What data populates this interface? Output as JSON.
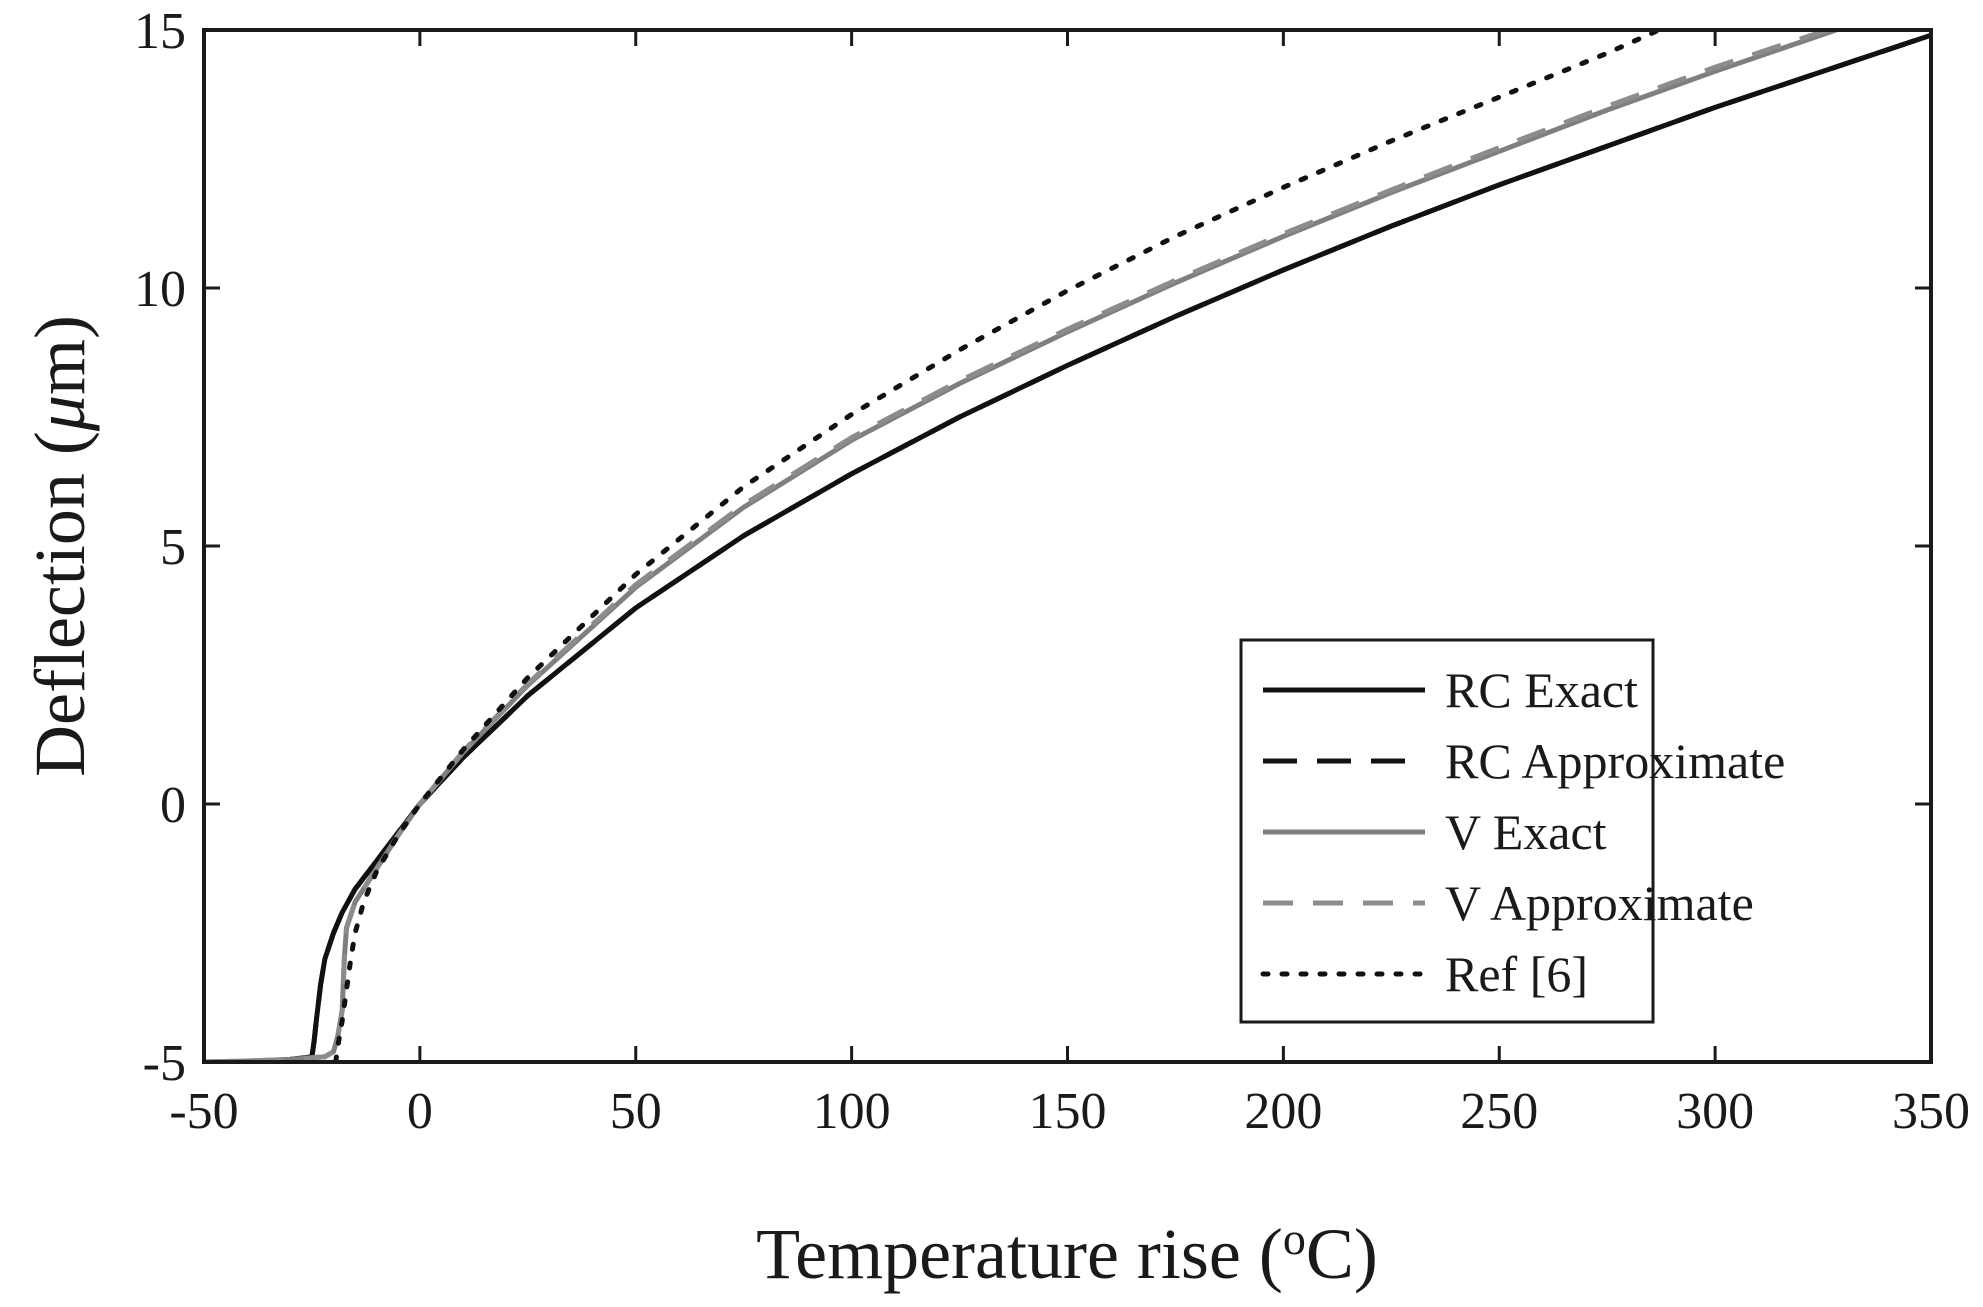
{
  "chart_data": {
    "type": "line",
    "title": "",
    "xlabel_main": "Temperature rise (",
    "xlabel_sup": "o",
    "xlabel_end": "C)",
    "ylabel_main": "Deflection (",
    "ylabel_mu": "μ",
    "ylabel_end": "m)",
    "xlim": [
      -50,
      350
    ],
    "ylim": [
      -5,
      15
    ],
    "xticks": [
      -50,
      0,
      50,
      100,
      150,
      200,
      250,
      300,
      350
    ],
    "yticks": [
      -5,
      0,
      5,
      10,
      15
    ],
    "xtick_labels": [
      "-50",
      "0",
      "50",
      "100",
      "150",
      "200",
      "250",
      "300",
      "350"
    ],
    "ytick_labels": [
      "-5",
      "0",
      "5",
      "10",
      "15"
    ],
    "legend_position": "bottom-right",
    "series": [
      {
        "name": "RC Exact",
        "color": "#111111",
        "dash": "solid",
        "x": [
          -50,
          -40,
          -30,
          -25,
          -24.5,
          -24,
          -23,
          -22,
          -20,
          -18,
          -15,
          -10,
          -5,
          0,
          10,
          25,
          50,
          75,
          100,
          125,
          150,
          175,
          200,
          225,
          250,
          275,
          300,
          325,
          350
        ],
        "y": [
          -5,
          -5,
          -4.95,
          -4.9,
          -4.6,
          -4.2,
          -3.5,
          -3.0,
          -2.5,
          -2.1,
          -1.65,
          -1.1,
          -0.55,
          0,
          0.9,
          2.1,
          3.8,
          5.2,
          6.4,
          7.5,
          8.5,
          9.45,
          10.35,
          11.2,
          12.0,
          12.75,
          13.5,
          14.2,
          14.9
        ]
      },
      {
        "name": "RC Approximate",
        "color": "#111111",
        "dash": "long-dash",
        "x": [
          -50,
          -40,
          -30,
          -25,
          -24.5,
          -24,
          -23,
          -22,
          -20,
          -18,
          -15,
          -10,
          -5,
          0,
          10,
          25,
          50,
          75,
          100,
          125,
          150,
          175,
          200,
          225,
          250,
          275,
          300,
          325,
          350
        ],
        "y": [
          -5,
          -5,
          -4.95,
          -4.9,
          -4.6,
          -4.2,
          -3.5,
          -3.0,
          -2.5,
          -2.1,
          -1.65,
          -1.1,
          -0.55,
          0,
          0.9,
          2.1,
          3.8,
          5.2,
          6.4,
          7.5,
          8.5,
          9.45,
          10.35,
          11.2,
          12.0,
          12.75,
          13.5,
          14.2,
          14.9
        ]
      },
      {
        "name": "V Exact",
        "color": "#7f7f7f",
        "dash": "solid",
        "x": [
          -50,
          -40,
          -30,
          -22,
          -20,
          -19,
          -18,
          -17.5,
          -17,
          -15,
          -10,
          -5,
          0,
          10,
          25,
          50,
          75,
          100,
          125,
          150,
          175,
          200,
          225,
          250,
          275,
          300,
          328
        ],
        "y": [
          -5,
          -4.98,
          -4.95,
          -4.9,
          -4.8,
          -4.5,
          -4.0,
          -3.0,
          -2.4,
          -1.9,
          -1.25,
          -0.6,
          0,
          1.0,
          2.3,
          4.2,
          5.75,
          7.05,
          8.15,
          9.15,
          10.1,
          11.0,
          11.85,
          12.65,
          13.45,
          14.2,
          15.0
        ]
      },
      {
        "name": "V Approximate",
        "color": "#8c8c8c",
        "dash": "dash",
        "x": [
          -50,
          -40,
          -30,
          -22,
          -20,
          -19,
          -18,
          -17.5,
          -17,
          -15,
          -10,
          -5,
          0,
          10,
          25,
          50,
          75,
          100,
          125,
          150,
          175,
          200,
          225,
          250,
          275,
          300,
          326
        ],
        "y": [
          -5,
          -4.98,
          -4.95,
          -4.9,
          -4.8,
          -4.5,
          -4.0,
          -3.0,
          -2.4,
          -1.9,
          -1.25,
          -0.6,
          0,
          1.02,
          2.33,
          4.25,
          5.8,
          7.1,
          8.2,
          9.2,
          10.15,
          11.05,
          11.9,
          12.72,
          13.52,
          14.28,
          15.0
        ]
      },
      {
        "name": "Ref [6]",
        "color": "#111111",
        "dash": "dot",
        "x": [
          -19.5,
          -19,
          -18,
          -17,
          -16,
          -15,
          -13,
          -10,
          -5,
          0,
          10,
          25,
          50,
          75,
          100,
          125,
          150,
          175,
          200,
          225,
          250,
          275,
          287
        ],
        "y": [
          -5,
          -4.7,
          -4.2,
          -3.6,
          -3.0,
          -2.5,
          -1.9,
          -1.3,
          -0.6,
          0,
          1.05,
          2.45,
          4.45,
          6.15,
          7.55,
          8.8,
          9.95,
          11.0,
          11.95,
          12.85,
          13.7,
          14.55,
          15.0
        ]
      }
    ]
  }
}
